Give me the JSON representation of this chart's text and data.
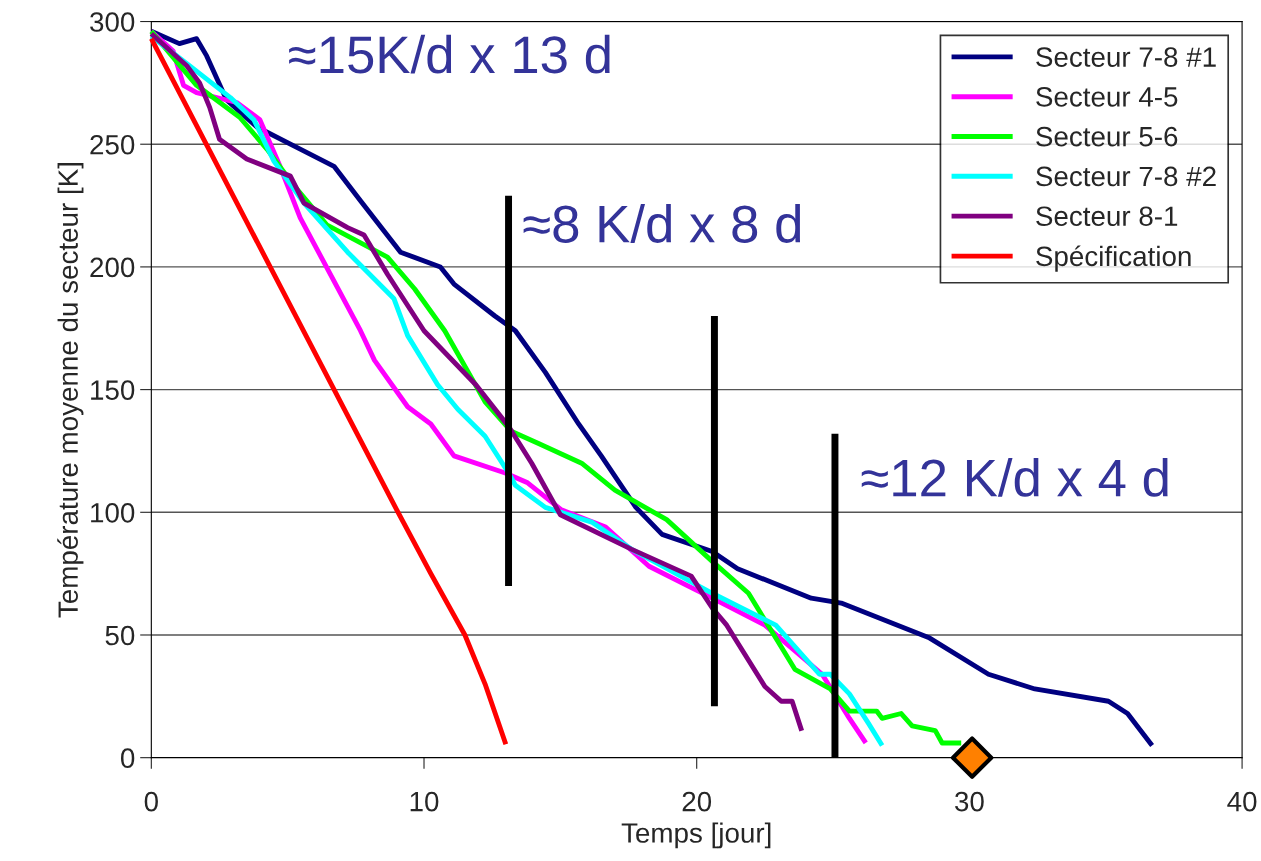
{
  "chart_data": {
    "type": "line",
    "xlabel": "Temps [jour]",
    "ylabel": "Température moyenne du secteur [K]",
    "xlim": [
      0,
      40
    ],
    "xticks": [
      0,
      10,
      20,
      30,
      40
    ],
    "ylim": [
      0,
      300
    ],
    "yticks": [
      0,
      50,
      100,
      150,
      200,
      250,
      300
    ],
    "grid": "y",
    "legend": "top right",
    "marker": "none",
    "line_style": "solid",
    "annotations": [
      "≈15K/d x 13 d",
      "≈8 K/d x 8 d",
      "≈12 K/d x 4 d"
    ],
    "series": [
      {
        "name": "Secteur 7-8 #1",
        "color": "#000080",
        "x": [
          0,
          1.03,
          1.66,
          2.03,
          2.76,
          3.87,
          5.46,
          6.7,
          7.67,
          9.14,
          10.6,
          11.1,
          12.6,
          13.35,
          14.45,
          15.67,
          16.5,
          17.77,
          18.73,
          20.57,
          21.5,
          24.2,
          25.3,
          28.5,
          30.7,
          32.4,
          35.1,
          35.8,
          36.7
        ],
        "values": [
          296,
          291,
          293,
          286,
          268,
          257,
          248,
          241,
          227,
          206,
          200,
          193,
          180,
          174,
          157,
          136,
          123,
          102,
          91,
          84,
          77,
          65,
          63,
          49,
          34,
          28,
          23,
          18,
          5
        ]
      },
      {
        "name": "Secteur 4-5",
        "color": "#ff00ff",
        "x": [
          0,
          0.8,
          1.18,
          1.66,
          3.13,
          3.98,
          4.72,
          5.46,
          7.67,
          8.18,
          9.4,
          10.25,
          11.1,
          12.98,
          13.8,
          15.04,
          16.66,
          18.25,
          20.57,
          22.5,
          24.6,
          25.6,
          26.2
        ],
        "values": [
          296,
          288,
          274,
          271,
          267,
          260,
          241,
          220,
          174,
          162,
          143,
          136,
          123,
          116,
          112,
          101,
          94,
          78,
          65,
          54,
          34,
          16,
          6
        ]
      },
      {
        "name": "Secteur 5-6",
        "color": "#00ff00",
        "x": [
          0,
          1.66,
          3.24,
          4.24,
          5.24,
          6.45,
          8.66,
          9.66,
          10.76,
          12.24,
          13.2,
          14.2,
          15.78,
          17.0,
          18.9,
          20.57,
          21.9,
          23.6,
          24.9,
          25.6,
          26.6,
          26.8,
          27.5,
          27.9,
          28.75,
          29.0,
          29.7
        ],
        "values": [
          296,
          274,
          261,
          248,
          233,
          217,
          204,
          191,
          174,
          145,
          133,
          128,
          120,
          109,
          97,
          80,
          67,
          36,
          28,
          19,
          19,
          16,
          18,
          13,
          11,
          6,
          6
        ]
      },
      {
        "name": "Secteur 7-8 #2",
        "color": "#00ffff",
        "x": [
          0,
          1.4,
          2.9,
          3.76,
          4.5,
          5.6,
          7.2,
          8.9,
          9.4,
          10.5,
          11.24,
          12.24,
          13.1,
          13.35,
          14.45,
          16.15,
          17.6,
          20.57,
          22.9,
          24.5,
          24.9,
          25.6,
          26.3,
          26.8
        ],
        "values": [
          294,
          282,
          269,
          260,
          243,
          226,
          206,
          187,
          172,
          152,
          142,
          131,
          116,
          111,
          102,
          96,
          85,
          67,
          54,
          34,
          34,
          26,
          14,
          5
        ]
      },
      {
        "name": "Secteur 8-1",
        "color": "#800080",
        "x": [
          0,
          1.3,
          1.77,
          2.14,
          2.5,
          3.5,
          5.1,
          5.6,
          7.2,
          7.8,
          8.66,
          10.0,
          11.9,
          13.1,
          13.95,
          15.0,
          17.6,
          19.8,
          20.57,
          21.1,
          22.5,
          23.1,
          23.5,
          23.85
        ],
        "values": [
          295,
          282,
          275,
          265,
          252,
          244,
          237,
          226,
          216,
          213,
          197,
          174,
          152,
          135,
          120,
          99,
          85,
          74,
          61,
          54,
          29,
          23,
          23,
          11
        ]
      },
      {
        "name": "Spécification",
        "color": "#ff0000",
        "x": [
          0,
          9.0,
          10.25,
          11.5,
          12.24,
          13.0
        ],
        "values": [
          293,
          101,
          75,
          50,
          30,
          5.5
        ]
      },
      {
        "color": "#000000",
        "x": [
          13.1,
          13.1
        ],
        "values": [
          70,
          229
        ]
      },
      {
        "color": "#000000",
        "x": [
          20.65,
          20.65
        ],
        "values": [
          21,
          180
        ]
      },
      {
        "color": "#000000",
        "x": [
          25.07,
          25.07
        ],
        "values": [
          0,
          132
        ]
      },
      {
        "type": "scatter",
        "marker": "diamond",
        "color": "#ff8000",
        "x": [
          30.1
        ],
        "values": [
          0
        ]
      }
    ]
  }
}
